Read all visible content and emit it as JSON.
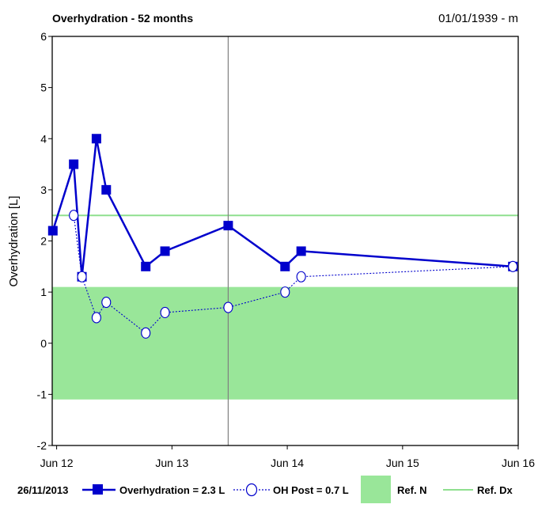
{
  "header": {
    "title": "Overhydration - 52 months",
    "patient_info": "01/01/1939 - m"
  },
  "chart_data": {
    "type": "line",
    "title": "Overhydration - 52 months",
    "ylabel": "Overhydration [L]",
    "xlabel": "",
    "ylim": [
      -2,
      6
    ],
    "yticks": [
      -2,
      -1,
      0,
      1,
      2,
      3,
      4,
      5,
      6
    ],
    "xlim": [
      "2012-05-18",
      "2016-06-01"
    ],
    "xticks": [
      {
        "date": "2012-06-01",
        "label": "Jun 12"
      },
      {
        "date": "2013-06-01",
        "label": "Jun 13"
      },
      {
        "date": "2014-06-01",
        "label": "Jun 14"
      },
      {
        "date": "2015-06-01",
        "label": "Jun 15"
      },
      {
        "date": "2016-06-01",
        "label": "Jun 16"
      }
    ],
    "cursor_date": "2013-11-26",
    "ref_band": {
      "name": "Ref. N",
      "y_min": -1.1,
      "y_max": 1.1,
      "color": "#99e699"
    },
    "ref_line": {
      "name": "Ref. Dx",
      "y": 2.5,
      "color": "#8fdf8f"
    },
    "series": [
      {
        "name": "Overhydration = 2.3 L",
        "style": "solid-square",
        "color": "#0000cc",
        "points": [
          {
            "x": "2012-05-20",
            "y": 2.2
          },
          {
            "x": "2012-07-25",
            "y": 3.5
          },
          {
            "x": "2012-08-20",
            "y": 1.3
          },
          {
            "x": "2012-10-05",
            "y": 4.0
          },
          {
            "x": "2012-11-05",
            "y": 3.0
          },
          {
            "x": "2013-03-10",
            "y": 1.5
          },
          {
            "x": "2013-05-10",
            "y": 1.8
          },
          {
            "x": "2013-11-26",
            "y": 2.3
          },
          {
            "x": "2014-05-25",
            "y": 1.5
          },
          {
            "x": "2014-07-15",
            "y": 1.8
          },
          {
            "x": "2016-05-15",
            "y": 1.5
          }
        ]
      },
      {
        "name": "OH Post = 0.7 L",
        "style": "dotted-circle",
        "color": "#0000cc",
        "points": [
          {
            "x": "2012-07-25",
            "y": 2.5
          },
          {
            "x": "2012-08-20",
            "y": 1.3
          },
          {
            "x": "2012-10-05",
            "y": 0.5
          },
          {
            "x": "2012-11-05",
            "y": 0.8
          },
          {
            "x": "2013-03-10",
            "y": 0.2
          },
          {
            "x": "2013-05-10",
            "y": 0.6
          },
          {
            "x": "2013-11-26",
            "y": 0.7
          },
          {
            "x": "2014-05-25",
            "y": 1.0
          },
          {
            "x": "2014-07-15",
            "y": 1.3
          },
          {
            "x": "2016-05-15",
            "y": 1.5
          }
        ]
      }
    ]
  },
  "legend": {
    "date": "26/11/2013",
    "overhydration": "Overhydration = 2.3 L",
    "oh_post": "OH Post = 0.7 L",
    "ref_n": "Ref. N",
    "ref_dx": "Ref. Dx"
  },
  "colors": {
    "series": "#0000cc",
    "ref_band": "#99e699",
    "ref_line": "#8fdf8f",
    "cursor": "#808080"
  }
}
